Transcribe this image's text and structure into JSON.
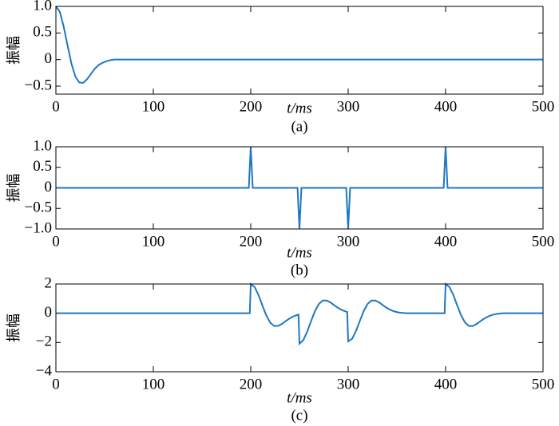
{
  "chart_data": [
    {
      "type": "line",
      "caption": "(a)",
      "xlabel": "t/ms",
      "ylabel": "振幅",
      "color": "#1f77c0",
      "x": [
        0,
        4,
        8,
        12,
        16,
        20,
        24,
        28,
        32,
        36,
        40,
        44,
        48,
        52,
        56,
        60,
        500
      ],
      "values": [
        1,
        0.9,
        0.62,
        0.26,
        -0.08,
        -0.32,
        -0.43,
        -0.44,
        -0.37,
        -0.27,
        -0.17,
        -0.1,
        -0.06,
        -0.03,
        -0.01,
        0,
        0
      ],
      "xlim": [
        0,
        500
      ],
      "xticks": [
        0,
        100,
        200,
        300,
        400,
        500
      ],
      "ylim": [
        -0.65,
        1
      ],
      "yticks": [
        {
          "value": 1,
          "label": "1.0"
        },
        0.5,
        0,
        {
          "value": -0.5,
          "label": "−0.5"
        }
      ]
    },
    {
      "type": "line",
      "caption": "(b)",
      "xlabel": "t/ms",
      "ylabel": "振幅",
      "color": "#1f77c0",
      "x": [
        0,
        198,
        200,
        202,
        248,
        250,
        252,
        298,
        300,
        302,
        398,
        400,
        402,
        500
      ],
      "values": [
        0,
        0,
        1,
        0,
        0,
        -1,
        0,
        0,
        -1,
        0,
        0,
        1,
        0,
        0
      ],
      "xlim": [
        0,
        500
      ],
      "xticks": [
        0,
        100,
        200,
        300,
        400,
        500
      ],
      "ylim": [
        -1,
        1
      ],
      "yticks": [
        {
          "value": 1,
          "label": "1.0"
        },
        0.5,
        0,
        {
          "value": -0.5,
          "label": "−0.5"
        },
        {
          "value": -1,
          "label": "−1.0"
        }
      ]
    },
    {
      "type": "line",
      "caption": "(c)",
      "xlabel": "t/ms",
      "ylabel": "振幅",
      "color": "#1f77c0",
      "x": [
        0,
        199,
        200,
        204,
        208,
        212,
        216,
        220,
        224,
        228,
        232,
        236,
        240,
        244,
        248,
        249,
        250,
        254,
        258,
        262,
        266,
        270,
        274,
        278,
        282,
        286,
        290,
        294,
        298,
        299,
        300,
        304,
        308,
        312,
        316,
        320,
        324,
        328,
        332,
        336,
        340,
        344,
        348,
        352,
        356,
        360,
        399,
        400,
        404,
        408,
        412,
        416,
        420,
        424,
        428,
        432,
        436,
        440,
        444,
        448,
        452,
        456,
        460,
        500
      ],
      "values": [
        0,
        0,
        2,
        1.79,
        1.24,
        0.52,
        -0.16,
        -0.64,
        -0.87,
        -0.87,
        -0.73,
        -0.53,
        -0.35,
        -0.21,
        -0.11,
        -0.09,
        -2.08,
        -1.83,
        -1.25,
        -0.52,
        0.16,
        0.64,
        0.87,
        0.87,
        0.73,
        0.53,
        0.35,
        0.21,
        0.11,
        0.09,
        -1.92,
        -1.75,
        -1.22,
        -0.52,
        0.16,
        0.64,
        0.87,
        0.87,
        0.73,
        0.53,
        0.35,
        0.21,
        0.11,
        0.05,
        0.02,
        0,
        0,
        2,
        1.79,
        1.24,
        0.52,
        -0.16,
        -0.64,
        -0.87,
        -0.87,
        -0.73,
        -0.53,
        -0.35,
        -0.21,
        -0.11,
        -0.05,
        -0.02,
        0,
        0
      ],
      "xlim": [
        0,
        500
      ],
      "xticks": [
        0,
        100,
        200,
        300,
        400,
        500
      ],
      "ylim": [
        -4,
        2
      ],
      "yticks": [
        2,
        0,
        {
          "value": -2,
          "label": "−2"
        },
        {
          "value": -4,
          "label": "−4"
        }
      ]
    }
  ]
}
